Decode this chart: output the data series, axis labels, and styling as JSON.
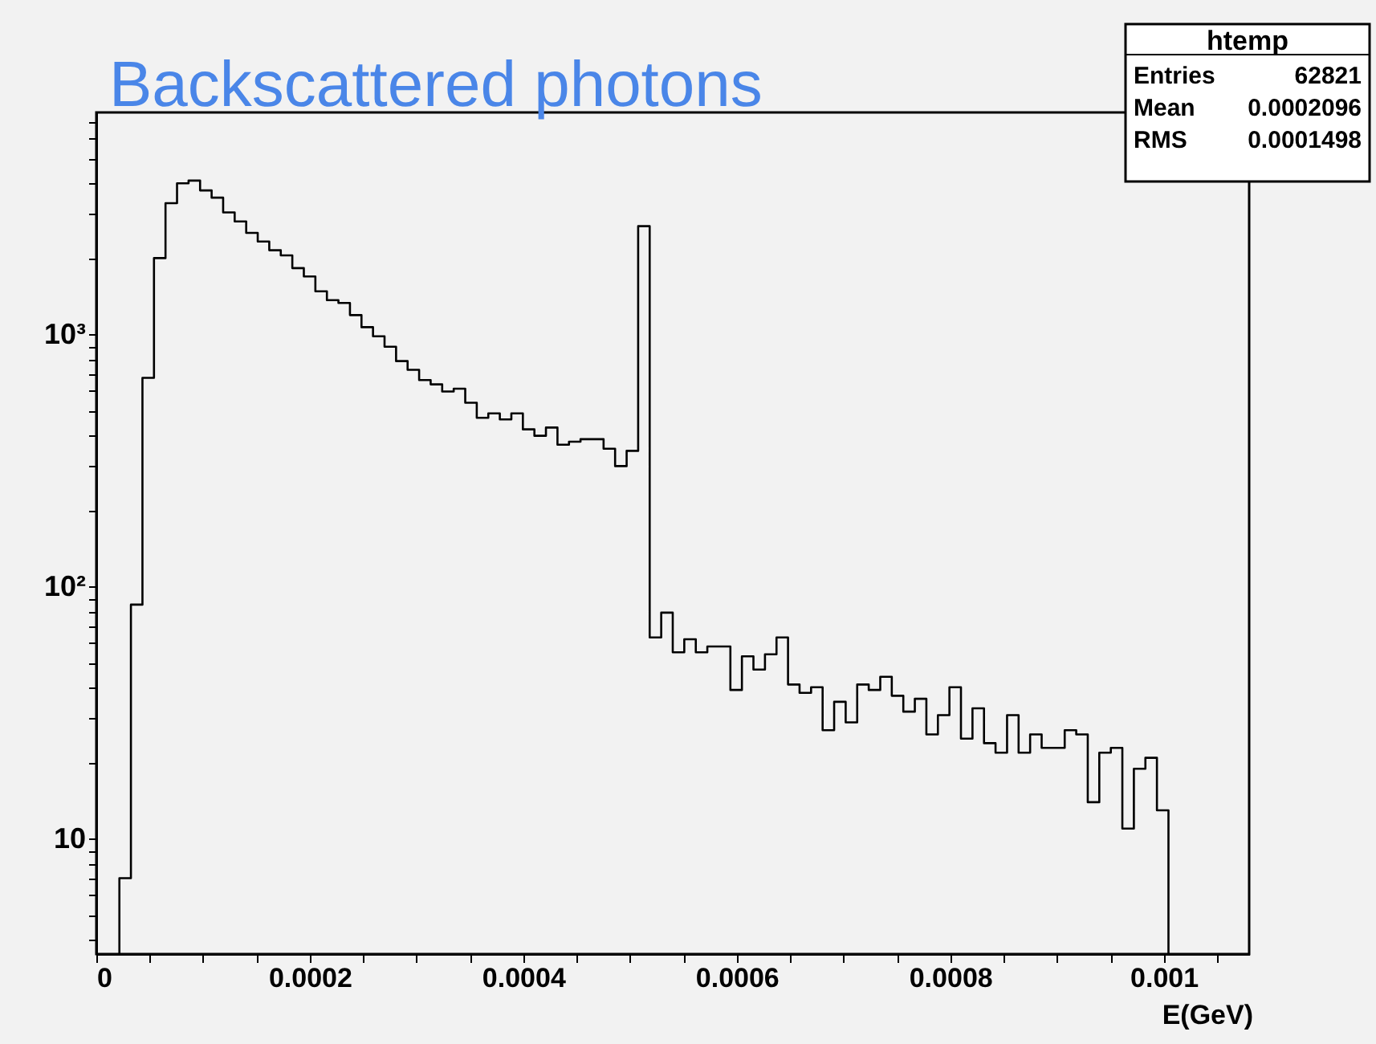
{
  "chart_data": {
    "type": "histogram",
    "title": "Backscattered photons",
    "xlabel": "E(GeV)",
    "bins": [
      2.16e-05,
      3.24e-05,
      4.32e-05,
      5.4e-05,
      6.48e-05,
      7.56e-05,
      8.64e-05,
      9.72e-05,
      0.000108,
      0.0001188,
      0.0001296,
      0.0001404,
      0.0001512,
      0.000162,
      0.0001728,
      0.0001836,
      0.0001944,
      0.0002052,
      0.000216,
      0.0002268,
      0.0002376,
      0.0002484,
      0.0002592,
      0.00027,
      0.0002808,
      0.0002916,
      0.0003024,
      0.0003132,
      0.000324,
      0.0003348,
      0.0003456,
      0.0003564,
      0.0003672,
      0.000378,
      0.0003888,
      0.0003996,
      0.0004104,
      0.0004212,
      0.000432,
      0.0004428,
      0.0004536,
      0.0004644,
      0.0004752,
      0.000486,
      0.0004968,
      0.0005076,
      0.0005184,
      0.0005292,
      0.00054,
      0.0005508,
      0.0005616,
      0.0005724,
      0.0005832,
      0.000594,
      0.0006048,
      0.0006156,
      0.0006264,
      0.0006372,
      0.000648,
      0.0006588,
      0.0006696,
      0.0006804,
      0.0006912,
      0.000702,
      0.0007128,
      0.0007236,
      0.0007344,
      0.0007452,
      0.000756,
      0.0007668,
      0.0007776,
      0.0007884,
      0.0007992,
      0.00081,
      0.0008208,
      0.0008316,
      0.0008424,
      0.0008532,
      0.000864,
      0.0008748,
      0.0008856,
      0.0008964,
      0.0009072,
      0.000918,
      0.0009288,
      0.0009396,
      0.0009504,
      0.0009612,
      0.000972,
      0.0009828,
      0.0009936,
      0.0010044
    ],
    "values": [
      7,
      85,
      674,
      2010,
      3320,
      3980,
      4080,
      3730,
      3490,
      3050,
      2810,
      2530,
      2340,
      2160,
      2060,
      1835,
      1700,
      1485,
      1370,
      1335,
      1195,
      1070,
      985,
      895,
      785,
      725,
      660,
      635,
      595,
      610,
      537,
      468,
      487,
      461,
      487,
      421,
      397,
      428,
      366,
      376,
      385,
      385,
      353,
      301,
      346,
      2690,
      63,
      79,
      55,
      62,
      55,
      58,
      58,
      39,
      53,
      47,
      54,
      63,
      41,
      38,
      40,
      27,
      35,
      29,
      41,
      39,
      44,
      37,
      32,
      36,
      26,
      31,
      40,
      25,
      33,
      24,
      22,
      31,
      22,
      26,
      23,
      23,
      27,
      26,
      14,
      22,
      23,
      11,
      19,
      21,
      13
    ],
    "color": "#000000",
    "log": "y",
    "grid": false,
    "xlim": [
      0,
      0.00108
    ],
    "ylim": [
      3.5,
      7600
    ],
    "xticks": [
      0,
      {
        "value": 5e-05,
        "label": null
      },
      {
        "value": 0.0001,
        "label": null
      },
      {
        "value": 0.00015,
        "label": null
      },
      0.0002,
      {
        "value": 0.00025,
        "label": null
      },
      {
        "value": 0.0003,
        "label": null
      },
      {
        "value": 0.00035,
        "label": null
      },
      0.0004,
      {
        "value": 0.00045,
        "label": null
      },
      {
        "value": 0.0005,
        "label": null
      },
      {
        "value": 0.00055,
        "label": null
      },
      0.0006,
      {
        "value": 0.00065,
        "label": null
      },
      {
        "value": 0.0007,
        "label": null
      },
      {
        "value": 0.00075,
        "label": null
      },
      0.0008,
      {
        "value": 0.00085,
        "label": null
      },
      {
        "value": 0.0009,
        "label": null
      },
      {
        "value": 0.00095,
        "label": null
      },
      0.001,
      {
        "value": 0.00105,
        "label": null
      }
    ],
    "yticks": [
      {
        "value": 4,
        "label": null
      },
      {
        "value": 5,
        "label": null
      },
      {
        "value": 6,
        "label": null
      },
      {
        "value": 7,
        "label": null
      },
      {
        "value": 8,
        "label": null
      },
      {
        "value": 9,
        "label": null
      },
      10,
      {
        "value": 20,
        "label": null
      },
      {
        "value": 30,
        "label": null
      },
      {
        "value": 40,
        "label": null
      },
      {
        "value": 50,
        "label": null
      },
      {
        "value": 60,
        "label": null
      },
      {
        "value": 70,
        "label": null
      },
      {
        "value": 80,
        "label": null
      },
      {
        "value": 90,
        "label": null
      },
      {
        "value": 100,
        "label": "10²"
      },
      {
        "value": 200,
        "label": null
      },
      {
        "value": 300,
        "label": null
      },
      {
        "value": 400,
        "label": null
      },
      {
        "value": 500,
        "label": null
      },
      {
        "value": 600,
        "label": null
      },
      {
        "value": 700,
        "label": null
      },
      {
        "value": 800,
        "label": null
      },
      {
        "value": 900,
        "label": null
      },
      {
        "value": 1000,
        "label": "10³"
      },
      {
        "value": 2000,
        "label": null
      },
      {
        "value": 3000,
        "label": null
      },
      {
        "value": 4000,
        "label": null
      },
      {
        "value": 5000,
        "label": null
      },
      {
        "value": 6000,
        "label": null
      },
      {
        "value": 7000,
        "label": null
      }
    ],
    "annotations": [
      "htemp",
      "Entries",
      "62821",
      "Mean",
      "0.0002096",
      "RMS",
      "0.0001498"
    ]
  }
}
